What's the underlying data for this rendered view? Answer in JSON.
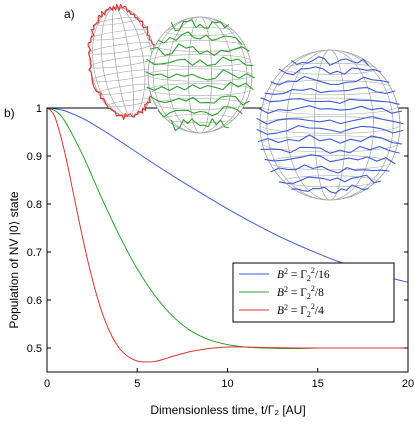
{
  "panel_labels": {
    "a": "a)",
    "b": "b)"
  },
  "chart_data": {
    "type": "line",
    "xlabel": "Dimensionless time, t/Γ₂ [AU]",
    "ylabel": "Population of NV |0⟩ state",
    "xlim": [
      0,
      20
    ],
    "ylim": [
      0.45,
      1.0
    ],
    "x_ticks": [
      0,
      5,
      10,
      15,
      20
    ],
    "y_ticks": [
      0.5,
      0.6,
      0.7,
      0.8,
      0.9,
      1.0
    ],
    "x_tick_labels": [
      "0",
      "5",
      "10",
      "15",
      "20"
    ],
    "y_tick_labels": [
      "0.5",
      "0.6",
      "0.7",
      "0.8",
      "0.9",
      "1"
    ],
    "grid": false,
    "legend_position": "lower-right",
    "series": [
      {
        "name": "B² = Γ₂²/16",
        "color": "#3b5bdb",
        "x": [
          0,
          0.5,
          1,
          2,
          3,
          4,
          5,
          6,
          7,
          8,
          9,
          10,
          11,
          12,
          13,
          14,
          15,
          16,
          17,
          18,
          19,
          20
        ],
        "y": [
          1.0,
          0.998,
          0.994,
          0.978,
          0.956,
          0.932,
          0.907,
          0.882,
          0.858,
          0.835,
          0.812,
          0.79,
          0.769,
          0.749,
          0.73,
          0.713,
          0.697,
          0.682,
          0.669,
          0.657,
          0.646,
          0.637
        ]
      },
      {
        "name": "B² = Γ₂²/8",
        "color": "#2ca02c",
        "x": [
          0,
          0.5,
          1,
          2,
          3,
          4,
          5,
          6,
          7,
          8,
          9,
          10,
          11,
          12,
          13,
          14,
          15,
          16,
          17,
          18,
          19,
          20
        ],
        "y": [
          1.0,
          0.993,
          0.972,
          0.9,
          0.815,
          0.735,
          0.665,
          0.608,
          0.565,
          0.535,
          0.517,
          0.507,
          0.502,
          0.5,
          0.499,
          0.499,
          0.5,
          0.5,
          0.5,
          0.5,
          0.5,
          0.5
        ]
      },
      {
        "name": "B² = Γ₂²/4",
        "color": "#e03131",
        "x": [
          0,
          0.25,
          0.5,
          1,
          1.5,
          2,
          2.5,
          3,
          3.5,
          4,
          4.5,
          5,
          5.5,
          6,
          6.5,
          7,
          8,
          9,
          10,
          11,
          12,
          14,
          16,
          18,
          20
        ],
        "y": [
          1.0,
          0.993,
          0.975,
          0.905,
          0.815,
          0.725,
          0.645,
          0.58,
          0.532,
          0.5,
          0.482,
          0.473,
          0.471,
          0.472,
          0.477,
          0.483,
          0.493,
          0.499,
          0.502,
          0.502,
          0.501,
          0.5,
          0.5,
          0.5,
          0.5
        ]
      }
    ],
    "legend_labels": [
      {
        "lhs": "B",
        "sup1": "2",
        "eq": " = Γ",
        "sub": "2",
        "sup2": "2",
        "den": "/16"
      },
      {
        "lhs": "B",
        "sup1": "2",
        "eq": " = Γ",
        "sub": "2",
        "sup2": "2",
        "den": "/8"
      },
      {
        "lhs": "B",
        "sup1": "2",
        "eq": " = Γ",
        "sub": "2",
        "sup2": "2",
        "den": "/4"
      }
    ]
  },
  "spheres": [
    {
      "name": "sphere-red",
      "trace_color": "#e03131"
    },
    {
      "name": "sphere-green",
      "trace_color": "#2ca02c"
    },
    {
      "name": "sphere-blue",
      "trace_color": "#3b5bdb"
    }
  ]
}
